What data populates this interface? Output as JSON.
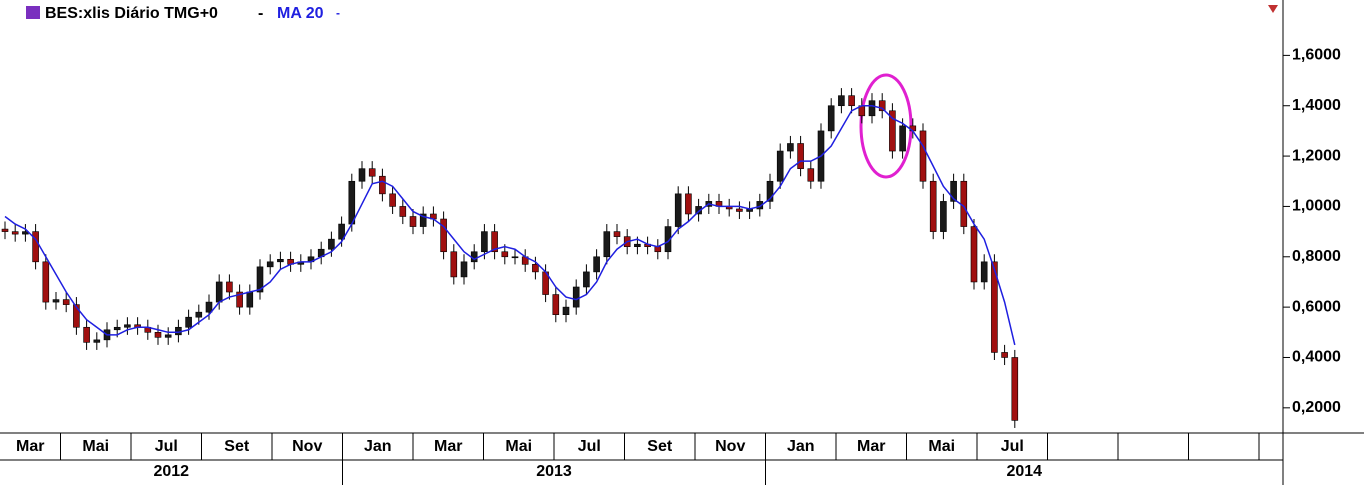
{
  "chart_data": {
    "type": "candlestick",
    "title": "BES:xlis Diário TMG+0",
    "title_suffix": "-",
    "ma": {
      "name": "MA 20",
      "suffix": "-",
      "color": "#1f1fe0",
      "values": [
        0.96,
        0.93,
        0.91,
        0.87,
        0.8,
        0.73,
        0.66,
        0.6,
        0.55,
        0.52,
        0.49,
        0.49,
        0.51,
        0.52,
        0.52,
        0.51,
        0.5,
        0.5,
        0.51,
        0.54,
        0.57,
        0.62,
        0.64,
        0.65,
        0.66,
        0.67,
        0.7,
        0.75,
        0.77,
        0.78,
        0.78,
        0.8,
        0.82,
        0.86,
        0.93,
        1.01,
        1.09,
        1.1,
        1.08,
        1.03,
        0.98,
        0.96,
        0.95,
        0.92,
        0.87,
        0.82,
        0.79,
        0.81,
        0.83,
        0.84,
        0.83,
        0.8,
        0.78,
        0.74,
        0.68,
        0.64,
        0.63,
        0.65,
        0.7,
        0.78,
        0.83,
        0.86,
        0.87,
        0.85,
        0.84,
        0.86,
        0.91,
        0.94,
        0.98,
        1.01,
        1.0,
        1.0,
        1.0,
        0.99,
        1.0,
        1.03,
        1.08,
        1.15,
        1.18,
        1.18,
        1.2,
        1.24,
        1.31,
        1.38,
        1.4,
        1.4,
        1.39,
        1.35,
        1.33,
        1.3,
        1.24,
        1.16,
        1.08,
        1.03,
        1.0,
        0.93,
        0.87,
        0.75,
        0.62,
        0.45
      ]
    },
    "up_color": "#1a1a1a",
    "down_color": "#a01010",
    "open": [
      0.91,
      0.9,
      0.89,
      0.9,
      0.78,
      0.62,
      0.63,
      0.61,
      0.52,
      0.46,
      0.47,
      0.51,
      0.52,
      0.53,
      0.52,
      0.5,
      0.48,
      0.49,
      0.52,
      0.56,
      0.58,
      0.62,
      0.7,
      0.66,
      0.6,
      0.66,
      0.76,
      0.78,
      0.79,
      0.77,
      0.78,
      0.8,
      0.83,
      0.87,
      0.93,
      1.1,
      1.15,
      1.12,
      1.05,
      1.0,
      0.96,
      0.92,
      0.97,
      0.95,
      0.82,
      0.72,
      0.78,
      0.82,
      0.9,
      0.82,
      0.8,
      0.8,
      0.77,
      0.74,
      0.65,
      0.57,
      0.6,
      0.68,
      0.74,
      0.8,
      0.9,
      0.88,
      0.84,
      0.85,
      0.84,
      0.82,
      0.92,
      1.05,
      0.97,
      1.0,
      1.02,
      1.0,
      0.99,
      0.98,
      0.99,
      1.02,
      1.1,
      1.22,
      1.25,
      1.15,
      1.1,
      1.3,
      1.4,
      1.44,
      1.4,
      1.36,
      1.42,
      1.38,
      1.22,
      1.32,
      1.3,
      1.1,
      0.9,
      1.02,
      1.1,
      0.92,
      0.7,
      0.78,
      0.42,
      0.4
    ],
    "high": [
      0.94,
      0.93,
      0.93,
      0.93,
      0.81,
      0.66,
      0.66,
      0.64,
      0.55,
      0.5,
      0.54,
      0.55,
      0.56,
      0.56,
      0.55,
      0.53,
      0.52,
      0.55,
      0.59,
      0.61,
      0.65,
      0.73,
      0.73,
      0.69,
      0.69,
      0.79,
      0.81,
      0.82,
      0.82,
      0.81,
      0.83,
      0.86,
      0.9,
      0.96,
      1.13,
      1.18,
      1.18,
      1.15,
      1.08,
      1.03,
      0.99,
      1.0,
      1.0,
      0.98,
      0.85,
      0.81,
      0.85,
      0.93,
      0.93,
      0.85,
      0.83,
      0.83,
      0.8,
      0.77,
      0.68,
      0.63,
      0.71,
      0.77,
      0.83,
      0.93,
      0.93,
      0.91,
      0.88,
      0.88,
      0.87,
      0.95,
      1.08,
      1.08,
      1.03,
      1.05,
      1.05,
      1.03,
      1.02,
      1.02,
      1.05,
      1.13,
      1.25,
      1.28,
      1.28,
      1.18,
      1.33,
      1.43,
      1.47,
      1.47,
      1.43,
      1.45,
      1.45,
      1.41,
      1.35,
      1.35,
      1.33,
      1.13,
      1.05,
      1.13,
      1.13,
      0.95,
      0.81,
      0.81,
      0.45,
      0.43
    ],
    "low": [
      0.87,
      0.86,
      0.86,
      0.75,
      0.59,
      0.59,
      0.58,
      0.49,
      0.43,
      0.43,
      0.44,
      0.48,
      0.49,
      0.49,
      0.47,
      0.45,
      0.45,
      0.46,
      0.49,
      0.53,
      0.55,
      0.59,
      0.63,
      0.57,
      0.57,
      0.63,
      0.73,
      0.75,
      0.74,
      0.74,
      0.75,
      0.77,
      0.8,
      0.84,
      0.9,
      1.07,
      1.09,
      1.02,
      0.97,
      0.93,
      0.89,
      0.89,
      0.92,
      0.79,
      0.69,
      0.69,
      0.75,
      0.79,
      0.79,
      0.77,
      0.77,
      0.74,
      0.71,
      0.62,
      0.54,
      0.54,
      0.57,
      0.65,
      0.71,
      0.77,
      0.85,
      0.81,
      0.81,
      0.81,
      0.79,
      0.79,
      0.89,
      0.94,
      0.94,
      0.97,
      0.97,
      0.96,
      0.95,
      0.95,
      0.96,
      0.99,
      1.07,
      1.19,
      1.12,
      1.07,
      1.07,
      1.27,
      1.37,
      1.37,
      1.33,
      1.33,
      1.35,
      1.19,
      1.19,
      1.27,
      1.07,
      0.87,
      0.87,
      0.99,
      0.89,
      0.67,
      0.67,
      0.39,
      0.37,
      0.12
    ],
    "close": [
      0.9,
      0.89,
      0.9,
      0.78,
      0.62,
      0.63,
      0.61,
      0.52,
      0.46,
      0.47,
      0.51,
      0.52,
      0.53,
      0.52,
      0.5,
      0.48,
      0.49,
      0.52,
      0.56,
      0.58,
      0.62,
      0.7,
      0.66,
      0.6,
      0.66,
      0.76,
      0.78,
      0.79,
      0.77,
      0.78,
      0.8,
      0.83,
      0.87,
      0.93,
      1.1,
      1.15,
      1.12,
      1.05,
      1.0,
      0.96,
      0.92,
      0.97,
      0.95,
      0.82,
      0.72,
      0.78,
      0.82,
      0.9,
      0.82,
      0.8,
      0.8,
      0.77,
      0.74,
      0.65,
      0.57,
      0.6,
      0.68,
      0.74,
      0.8,
      0.9,
      0.88,
      0.84,
      0.85,
      0.84,
      0.82,
      0.92,
      1.05,
      0.97,
      1.0,
      1.02,
      1.0,
      0.99,
      0.98,
      0.99,
      1.02,
      1.1,
      1.22,
      1.25,
      1.15,
      1.1,
      1.3,
      1.4,
      1.44,
      1.4,
      1.36,
      1.42,
      1.38,
      1.22,
      1.32,
      1.3,
      1.1,
      0.9,
      1.02,
      1.1,
      0.92,
      0.7,
      0.78,
      0.42,
      0.4,
      0.15
    ],
    "ylim": [
      0.1,
      1.82
    ],
    "yticks": [
      {
        "value": 0.2,
        "label": "0,2000"
      },
      {
        "value": 0.4,
        "label": "0,4000"
      },
      {
        "value": 0.6,
        "label": "0,6000"
      },
      {
        "value": 0.8,
        "label": "0,8000"
      },
      {
        "value": 1.0,
        "label": "1,0000"
      },
      {
        "value": 1.2,
        "label": "1,2000"
      },
      {
        "value": 1.4,
        "label": "1,4000"
      },
      {
        "value": 1.6,
        "label": "1,6000"
      }
    ],
    "months": [
      "Mar",
      "Mai",
      "Jul",
      "Set",
      "Nov",
      "Jan",
      "Mar",
      "Mai",
      "Jul",
      "Set",
      "Nov",
      "Jan",
      "Mar",
      "Mai",
      "Jul",
      null,
      null,
      null
    ],
    "years": [
      "2012",
      "2013",
      "2014"
    ],
    "grid": false
  }
}
